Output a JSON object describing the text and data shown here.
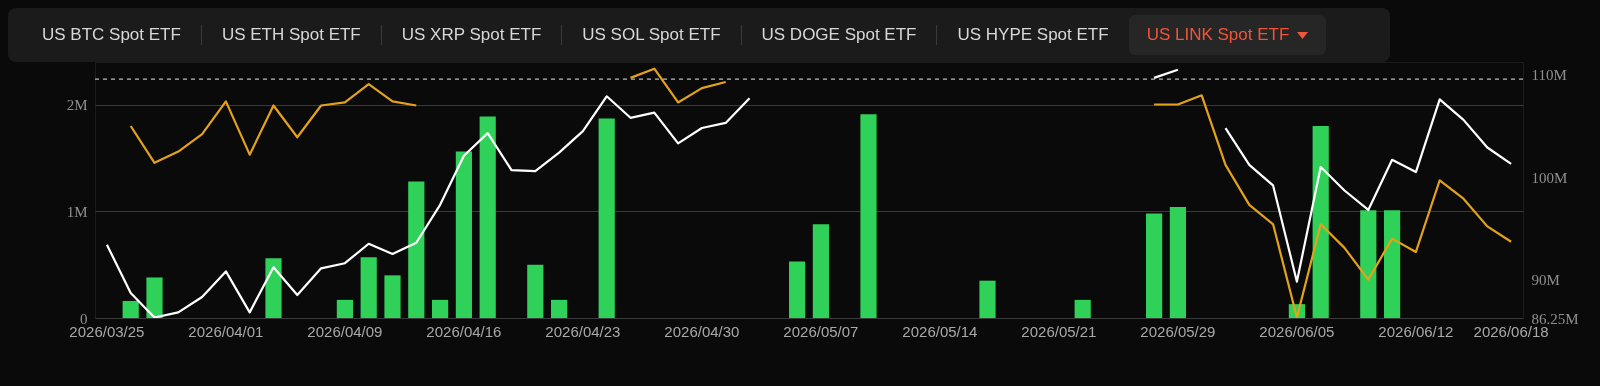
{
  "chart_data": {
    "type": "bar",
    "annotations": [
      "US BTC Spot ETF",
      "US ETH Spot ETF",
      "US XRP Spot ETF",
      "US SOL Spot ETF",
      "US DOGE Spot ETF",
      "US HYPE Spot ETF",
      "US LINK Spot ETF"
    ],
    "categories": [
      "2026/03/25",
      null,
      null,
      null,
      null,
      "2026/04/01",
      null,
      null,
      null,
      null,
      "2026/04/09",
      null,
      null,
      null,
      null,
      "2026/04/16",
      null,
      null,
      null,
      null,
      "2026/04/23",
      null,
      null,
      null,
      null,
      "2026/04/30",
      null,
      null,
      null,
      null,
      "2026/05/07",
      null,
      null,
      null,
      null,
      "2026/05/14",
      null,
      null,
      null,
      null,
      "2026/05/21",
      null,
      null,
      null,
      null,
      "2026/05/29",
      null,
      null,
      null,
      null,
      "2026/06/05",
      null,
      null,
      null,
      null,
      "2026/06/12",
      null,
      null,
      null,
      "2026/06/18"
    ],
    "series": [
      {
        "color": "#2fd158",
        "values": [
          null,
          160000,
          380000,
          null,
          null,
          null,
          null,
          560000,
          null,
          null,
          170000,
          570000,
          400000,
          1280000,
          170000,
          1560000,
          1890000,
          null,
          500000,
          170000,
          null,
          1870000,
          null,
          null,
          null,
          null,
          null,
          null,
          null,
          530000,
          880000,
          null,
          1910000,
          null,
          null,
          null,
          null,
          350000,
          null,
          null,
          null,
          170000,
          null,
          null,
          980000,
          1040000,
          null,
          null,
          null,
          null,
          130000,
          1800000,
          null,
          1010000,
          1010000,
          null,
          null,
          null,
          null,
          null
        ]
      },
      {
        "type": "line",
        "axis": "y2",
        "color": "#e3a21a",
        "values": [
          null,
          105000000,
          101400000,
          102500000,
          104200000,
          107400000,
          102200000,
          107000000,
          103900000,
          107000000,
          107300000,
          109100000,
          107400000,
          107000000,
          null,
          null,
          null,
          null,
          null,
          null,
          null,
          null,
          109700000,
          110600000,
          107300000,
          108700000,
          109300000,
          null,
          null,
          null,
          null,
          null,
          null,
          null,
          null,
          null,
          null,
          null,
          null,
          null,
          null,
          null,
          null,
          null,
          107100000,
          107100000,
          108000000,
          101200000,
          97300000,
          95400000,
          86300000,
          95400000,
          93100000,
          90000000,
          94000000,
          92700000,
          99700000,
          97900000,
          95200000,
          93700000
        ]
      },
      {
        "type": "line",
        "axis": "y2",
        "color": "#ffffff",
        "values": [
          93400000,
          88700000,
          86300000,
          86800000,
          88300000,
          90800000,
          86800000,
          91200000,
          88500000,
          91100000,
          91600000,
          93500000,
          92500000,
          93600000,
          97300000,
          102100000,
          104300000,
          100700000,
          100600000,
          102400000,
          104500000,
          107900000,
          105800000,
          106300000,
          103300000,
          104800000,
          105300000,
          107700000,
          null,
          null,
          null,
          null,
          null,
          null,
          null,
          null,
          null,
          null,
          null,
          null,
          null,
          null,
          null,
          null,
          109700000,
          110500000,
          null,
          104800000,
          101200000,
          99200000,
          89800000,
          101000000,
          98700000,
          96800000,
          101700000,
          100500000,
          107600000,
          105600000,
          102900000,
          101300000
        ]
      }
    ],
    "ylim": [
      0,
      2400000
    ],
    "yticks": [
      0,
      {
        "value": 1000000,
        "label": "1M"
      },
      {
        "value": 2000000,
        "label": "2M"
      }
    ],
    "y2lim": [
      86250000,
      111250000
    ],
    "y2ticks": [
      {
        "value": 86250000,
        "label": "86.25M"
      },
      {
        "value": 90000000,
        "label": "90M"
      },
      {
        "value": 100000000,
        "label": "100M"
      },
      {
        "value": 110000000,
        "label": "110M"
      }
    ],
    "grid": "y",
    "ref_lines": [
      {
        "axis": "y",
        "value": 2240000,
        "color": "#bbbbbb",
        "line_style": "dashed"
      }
    ]
  }
}
